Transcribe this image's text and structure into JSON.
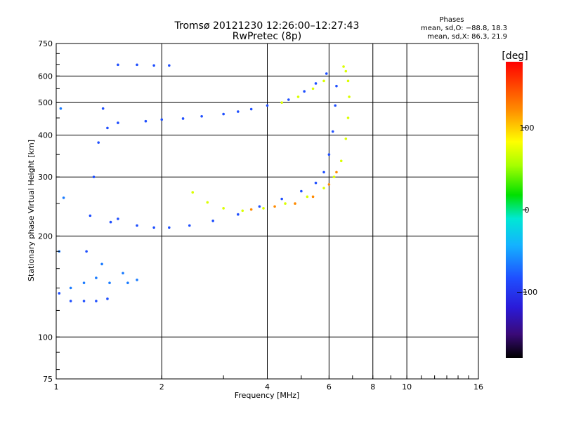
{
  "chart_data": {
    "type": "scatter",
    "title": "Tromsø 20121230 12:26:00–12:27:43",
    "subtitle": "RwPretec (8p)",
    "xlabel": "Frequency [MHz]",
    "ylabel": "Stationary phase Virtual Height [km]",
    "x_scale": "log",
    "y_scale": "log",
    "xlim": [
      1,
      16
    ],
    "ylim": [
      75,
      750
    ],
    "x_ticks": [
      1,
      2,
      4,
      6,
      8,
      10,
      16
    ],
    "y_ticks": [
      75,
      100,
      200,
      300,
      400,
      500,
      600,
      750
    ],
    "grid": true,
    "stats": {
      "heading": "Phases",
      "line_o": "mean, sd,O: −88.8, 18.3",
      "line_x": "mean, sd,X:  86.3, 21.9"
    },
    "colorbar": {
      "label": "[deg]",
      "range": [
        -180,
        180
      ],
      "ticks": [
        100,
        0,
        -100
      ],
      "tick_labels": [
        "100",
        "0",
        "−100"
      ]
    },
    "series": [
      {
        "phase": -90,
        "segments": [
          {
            "x": [
              1.5,
              1.8,
              2.0,
              2.3,
              2.6,
              3.0,
              3.3,
              3.6
            ],
            "y": [
              435,
              440,
              445,
              448,
              455,
              462,
              470,
              478
            ]
          },
          {
            "x": [
              1.5,
              1.7,
              1.9,
              2.1
            ],
            "y": [
              648,
              648,
              645,
              645
            ]
          },
          {
            "x": [
              4.0,
              4.6,
              5.1,
              5.5,
              5.9
            ],
            "y": [
              490,
              510,
              540,
              570,
              610
            ]
          },
          {
            "x": [
              1.5,
              1.7,
              1.9,
              2.1,
              2.4,
              2.8,
              3.3,
              3.8,
              4.4,
              5.0,
              5.5,
              5.8,
              6.0,
              6.15,
              6.25,
              6.3
            ],
            "y": [
              225,
              215,
              212,
              212,
              215,
              222,
              232,
              245,
              258,
              272,
              288,
              310,
              350,
              410,
              490,
              560
            ]
          },
          {
            "x": [
              1.02,
              1.1,
              1.2,
              1.3,
              1.4
            ],
            "y": [
              135,
              128,
              128,
              128,
              130
            ]
          },
          {
            "x": [
              1.22,
              1.25,
              1.28,
              1.32,
              1.36,
              1.4,
              1.43
            ],
            "y": [
              180,
              230,
              300,
              380,
              480,
              420,
              220
            ]
          }
        ]
      },
      {
        "phase": -70,
        "segments": [
          {
            "x": [
              1.1,
              1.2,
              1.3,
              1.35,
              1.42
            ],
            "y": [
              140,
              145,
              150,
              165,
              145
            ]
          },
          {
            "x": [
              1.55,
              1.6,
              1.7
            ],
            "y": [
              155,
              145,
              148
            ]
          },
          {
            "x": [
              1.02,
              1.05,
              1.03
            ],
            "y": [
              180,
              260,
              480
            ]
          }
        ]
      },
      {
        "phase": 80,
        "segments": [
          {
            "x": [
              2.45,
              2.7,
              3.0,
              3.4,
              3.9,
              4.5,
              5.2,
              5.8,
              6.2,
              6.5,
              6.7,
              6.8,
              6.85,
              6.8,
              6.7,
              6.6
            ],
            "y": [
              270,
              252,
              242,
              238,
              242,
              250,
              262,
              278,
              300,
              335,
              390,
              450,
              520,
              580,
              620,
              640
            ]
          },
          {
            "x": [
              4.4,
              4.9,
              5.4,
              5.8
            ],
            "y": [
              500,
              520,
              550,
              580
            ]
          }
        ]
      },
      {
        "phase": 140,
        "segments": [
          {
            "x": [
              3.6,
              4.2,
              4.8,
              5.4,
              6.0,
              6.3
            ],
            "y": [
              240,
              245,
              250,
              262,
              285,
              310
            ]
          }
        ]
      }
    ]
  }
}
